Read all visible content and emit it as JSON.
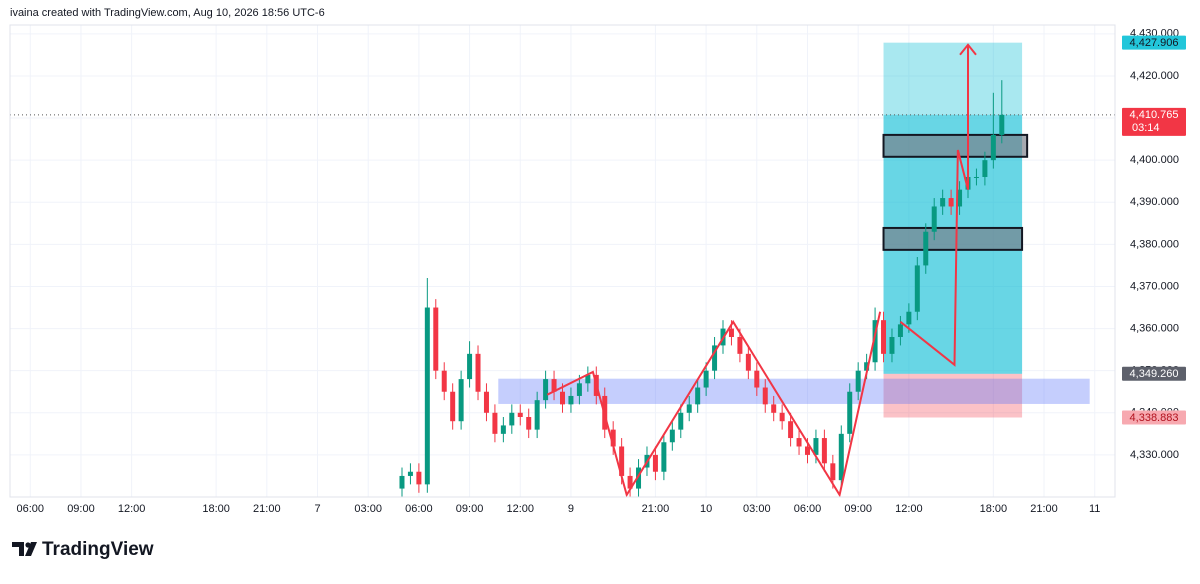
{
  "header": {
    "text": "ivaina created with TradingView.com, Aug 10, 2026 18:56 UTC-6"
  },
  "chart_data": {
    "type": "candlestick",
    "x": [
      22.0,
      22.5,
      23.0,
      23.5,
      24.0,
      24.5,
      25.0,
      25.5,
      26.0,
      26.5,
      27.0,
      27.5,
      28.0,
      28.5,
      29.0,
      29.5,
      30.0,
      30.5,
      31.0,
      31.5,
      32.0,
      32.5,
      33.0,
      33.5,
      34.0,
      34.5,
      35.0,
      35.5,
      36.0,
      36.5,
      37.0,
      37.5,
      38.0,
      38.5,
      39.0,
      39.5,
      40.0,
      40.5,
      41.0,
      41.5,
      42.0,
      42.5,
      43.0,
      43.5,
      44.0,
      44.5,
      45.0,
      45.5,
      46.0,
      46.5,
      47.0,
      47.5,
      48.0,
      48.5,
      49.0,
      49.5,
      50.0,
      50.5,
      51.0,
      51.5,
      52.0,
      52.5,
      53.0,
      53.5,
      54.0,
      54.5,
      55.0,
      55.5,
      56.0,
      56.5,
      57.0,
      57.5
    ],
    "open": [
      4322,
      4325,
      4326,
      4323,
      4365,
      4350,
      4345,
      4338,
      4348,
      4354,
      4345,
      4340,
      4335,
      4337,
      4340,
      4339,
      4336,
      4343,
      4348,
      4345,
      4342,
      4344,
      4347,
      4349,
      4344,
      4336,
      4332,
      4325,
      4322,
      4327,
      4330,
      4326,
      4333,
      4336,
      4340,
      4342,
      4346,
      4350,
      4356,
      4360,
      4358,
      4354,
      4350,
      4346,
      4342,
      4340,
      4338,
      4334,
      4332,
      4330,
      4334,
      4328,
      4324,
      4335,
      4345,
      4350,
      4352,
      4362,
      4354,
      4358,
      4361,
      4364,
      4375,
      4383,
      4389,
      4391,
      4389,
      4393,
      4396,
      4396,
      4400,
      4406
    ],
    "high": [
      4327,
      4328,
      4328,
      4372,
      4367,
      4352,
      4347,
      4350,
      4357,
      4356,
      4347,
      4342,
      4339,
      4342,
      4342,
      4341,
      4345,
      4350,
      4350,
      4347,
      4346,
      4349,
      4351,
      4351,
      4346,
      4338,
      4334,
      4327,
      4329,
      4332,
      4332,
      4335,
      4338,
      4342,
      4344,
      4348,
      4352,
      4358,
      4362,
      4362,
      4360,
      4356,
      4352,
      4348,
      4344,
      4342,
      4340,
      4336,
      4334,
      4336,
      4336,
      4330,
      4337,
      4347,
      4352,
      4354,
      4365,
      4364,
      4360,
      4363,
      4366,
      4377,
      4385,
      4391,
      4393,
      4393,
      4395,
      4398,
      4398,
      4402,
      4416,
      4419
    ],
    "low": [
      4320,
      4323,
      4321,
      4321,
      4348,
      4343,
      4336,
      4336,
      4346,
      4343,
      4338,
      4333,
      4333,
      4335,
      4337,
      4334,
      4334,
      4341,
      4343,
      4340,
      4340,
      4342,
      4345,
      4342,
      4334,
      4330,
      4323,
      4320,
      4320,
      4325,
      4324,
      4324,
      4331,
      4334,
      4338,
      4340,
      4344,
      4348,
      4354,
      4356,
      4352,
      4348,
      4344,
      4340,
      4338,
      4336,
      4332,
      4330,
      4328,
      4328,
      4326,
      4322,
      4322,
      4333,
      4343,
      4348,
      4350,
      4352,
      4352,
      4356,
      4359,
      4362,
      4373,
      4381,
      4387,
      4387,
      4387,
      4391,
      4394,
      4394,
      4398,
      4404
    ],
    "close": [
      4325,
      4326,
      4323,
      4365,
      4350,
      4345,
      4338,
      4348,
      4354,
      4345,
      4340,
      4335,
      4337,
      4340,
      4339,
      4336,
      4343,
      4348,
      4345,
      4342,
      4344,
      4347,
      4349,
      4344,
      4336,
      4332,
      4325,
      4322,
      4327,
      4330,
      4326,
      4333,
      4336,
      4340,
      4342,
      4346,
      4350,
      4356,
      4360,
      4358,
      4354,
      4350,
      4346,
      4342,
      4340,
      4338,
      4334,
      4332,
      4330,
      4334,
      4328,
      4324,
      4335,
      4345,
      4350,
      4352,
      4362,
      4354,
      4358,
      4361,
      4364,
      4375,
      4383,
      4389,
      4391,
      4389,
      4393,
      4396,
      4396,
      4400,
      4406,
      4410.765
    ],
    "up_color": "#089981",
    "down_color": "#f23645",
    "xlim": [
      -1.2,
      64.2
    ],
    "ylim": [
      4320,
      4432.1
    ],
    "xticks": [
      {
        "value": 0,
        "label": "06:00"
      },
      {
        "value": 3,
        "label": "09:00"
      },
      {
        "value": 6,
        "label": "12:00"
      },
      {
        "value": 11,
        "label": "18:00"
      },
      {
        "value": 14,
        "label": "21:00"
      },
      {
        "value": 17,
        "label": "7"
      },
      {
        "value": 20,
        "label": "03:00"
      },
      {
        "value": 23,
        "label": "06:00"
      },
      {
        "value": 26,
        "label": "09:00"
      },
      {
        "value": 29,
        "label": "12:00"
      },
      {
        "value": 32,
        "label": "9"
      },
      {
        "value": 37,
        "label": "21:00"
      },
      {
        "value": 40,
        "label": "10"
      },
      {
        "value": 43,
        "label": "03:00"
      },
      {
        "value": 46,
        "label": "06:00"
      },
      {
        "value": 49,
        "label": "09:00"
      },
      {
        "value": 52,
        "label": "12:00"
      },
      {
        "value": 57,
        "label": "18:00"
      },
      {
        "value": 60,
        "label": "21:00"
      },
      {
        "value": 63,
        "label": "11"
      }
    ],
    "yticks": [
      {
        "value": 4330,
        "label": "4,330.000"
      },
      {
        "value": 4340,
        "label": "4,340.000"
      },
      {
        "value": 4350,
        "label": "4,350.000"
      },
      {
        "value": 4360,
        "label": "4,360.000"
      },
      {
        "value": 4370,
        "label": "4,370.000"
      },
      {
        "value": 4380,
        "label": "4,380.000"
      },
      {
        "value": 4390,
        "label": "4,390.000"
      },
      {
        "value": 4400,
        "label": "4,400.000"
      },
      {
        "value": 4410,
        "label": "4,410.000"
      },
      {
        "value": 4420,
        "label": "4,420.000"
      },
      {
        "value": 4430,
        "label": "4,430.000"
      }
    ],
    "grid": true,
    "current_price": {
      "value": 4410.765,
      "label": "4,410.765",
      "countdown": "03:14",
      "color": "#f23645"
    },
    "position": {
      "x": [
        50.5,
        58.7
      ],
      "entry": {
        "value": 4349.26,
        "label": "4,349.260"
      },
      "target": {
        "value": 4427.906,
        "label": "4,427.906"
      },
      "stop": {
        "value": 4338.883,
        "label": "4,338.883"
      }
    },
    "zones": [
      {
        "x": [
          50.5,
          59.0
        ],
        "y": [
          4400.8,
          4406.0
        ],
        "color": "rgba(120,123,134,0.65)"
      },
      {
        "x": [
          50.5,
          58.7
        ],
        "y": [
          4378.7,
          4383.9
        ],
        "color": "rgba(120,123,134,0.65)"
      },
      {
        "x": [
          27.7,
          62.7
        ],
        "y": [
          4342.1,
          4348.1
        ],
        "color": "rgba(90,115,250,0.35)"
      }
    ],
    "zigzag": {
      "x": [
        30.6,
        33.3,
        35.3,
        41.6,
        47.9,
        50.3
      ],
      "y": [
        4344.3,
        4349.7,
        4320.5,
        4361.6,
        4320.5,
        4364.0
      ],
      "color": "#f23645"
    },
    "arrow": {
      "x": [
        51.5,
        54.7,
        54.9,
        55.5,
        55.5
      ],
      "y": [
        4361.6,
        4351.4,
        4402.4,
        4393.0,
        4427.4
      ],
      "color": "#f23645"
    }
  },
  "footer": {
    "brand": "TradingView"
  }
}
